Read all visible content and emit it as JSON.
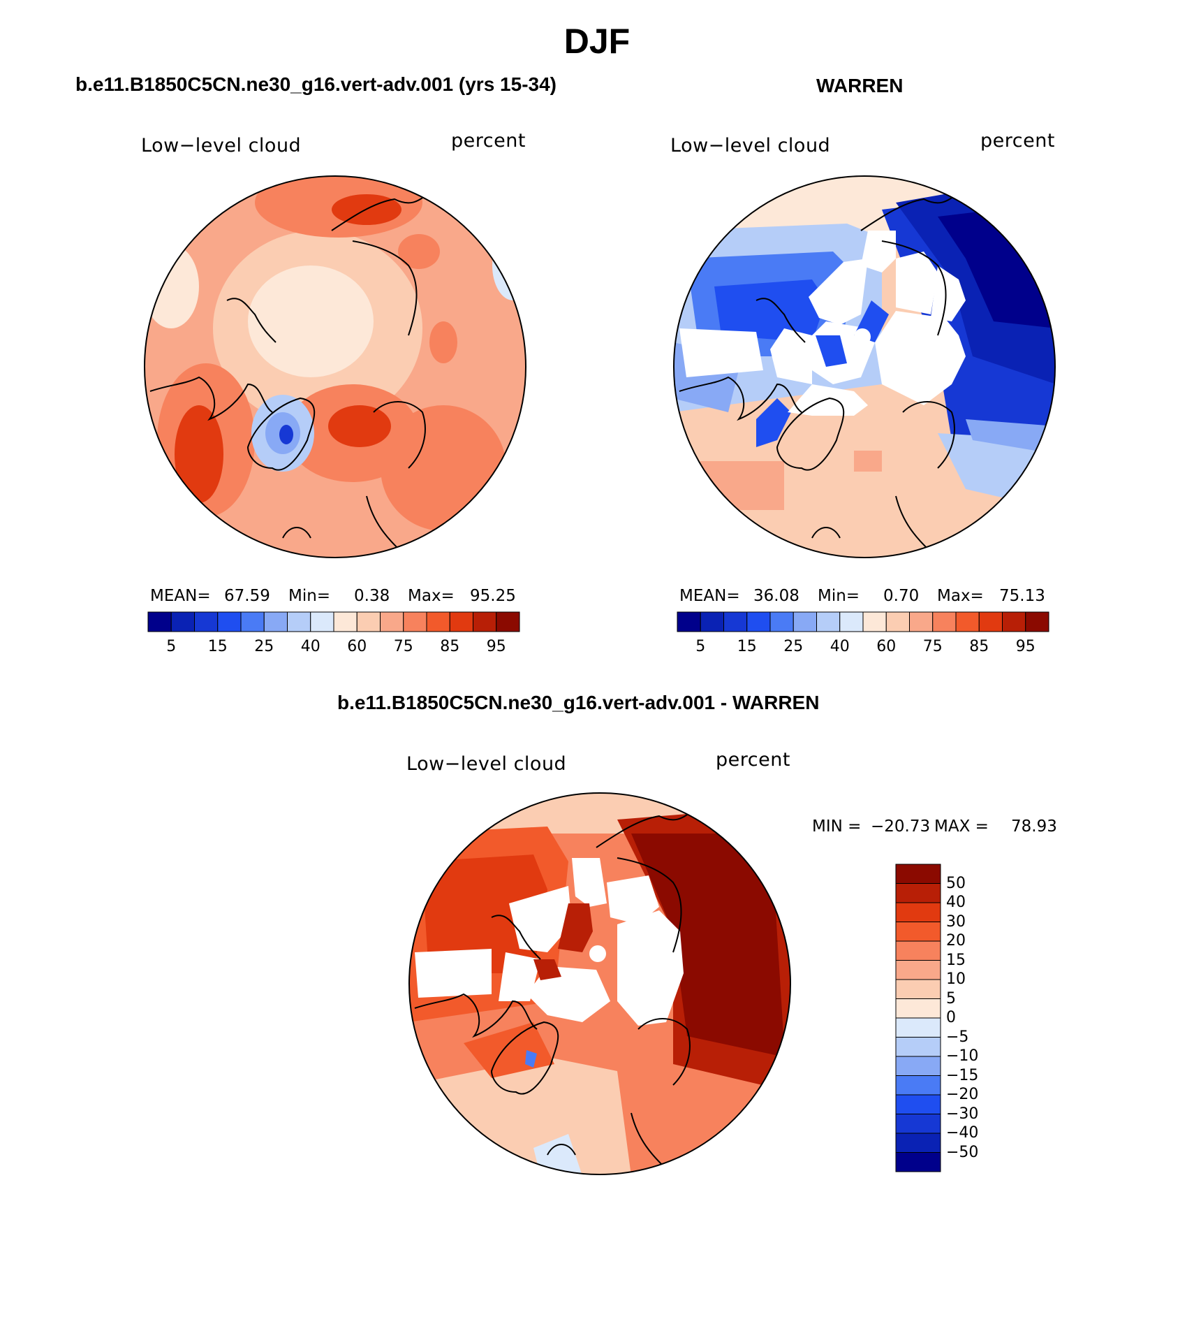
{
  "title": "DJF",
  "panels": [
    {
      "id": "model",
      "heading": "b.e11.B1850C5CN.ne30_g16.vert-adv.001 (yrs 15-34)",
      "variable": "Low−level cloud",
      "units": "percent",
      "stats": {
        "mean_label": "MEAN=",
        "mean": "67.59",
        "min_label": "Min=",
        "min": "0.38",
        "max_label": "Max=",
        "max": "95.25"
      },
      "colorbar_ticks": [
        "5",
        "15",
        "25",
        "40",
        "60",
        "75",
        "85",
        "95"
      ]
    },
    {
      "id": "obs",
      "heading": "WARREN",
      "variable": "Low−level cloud",
      "units": "percent",
      "stats": {
        "mean_label": "MEAN=",
        "mean": "36.08",
        "min_label": "Min=",
        "min": "0.70",
        "max_label": "Max=",
        "max": "75.13"
      },
      "colorbar_ticks": [
        "5",
        "15",
        "25",
        "40",
        "60",
        "75",
        "85",
        "95"
      ]
    },
    {
      "id": "diff",
      "heading": "b.e11.B1850C5CN.ne30_g16.vert-adv.001 - WARREN",
      "variable": "Low−level cloud",
      "units": "percent",
      "stats": {
        "min_label": "MIN =",
        "min": "−20.73",
        "max_label": "MAX =",
        "max": "78.93"
      },
      "colorbar_ticks": [
        "50",
        "40",
        "30",
        "20",
        "15",
        "10",
        "5",
        "0",
        "−5",
        "−10",
        "−15",
        "−20",
        "−30",
        "−40",
        "−50"
      ]
    }
  ],
  "colors": {
    "abs_scale": [
      "#00008b",
      "#0a22b4",
      "#1638d4",
      "#1f4ef0",
      "#4a7bf5",
      "#88a9f5",
      "#b5cdf8",
      "#dbe9fb",
      "#fde8d8",
      "#fbcdb2",
      "#f9a88a",
      "#f7825d",
      "#f25a2b",
      "#e13a10",
      "#b81f06",
      "#8b0a00"
    ],
    "diff_scale": [
      "#00008b",
      "#0a22b4",
      "#1638d4",
      "#1f4ef0",
      "#4a7bf5",
      "#88a9f5",
      "#b5cdf8",
      "#dbe9fb",
      "#fde8d8",
      "#fbcdb2",
      "#f9a88a",
      "#f7825d",
      "#f25a2b",
      "#e13a10",
      "#b81f06",
      "#8b0a00"
    ]
  }
}
